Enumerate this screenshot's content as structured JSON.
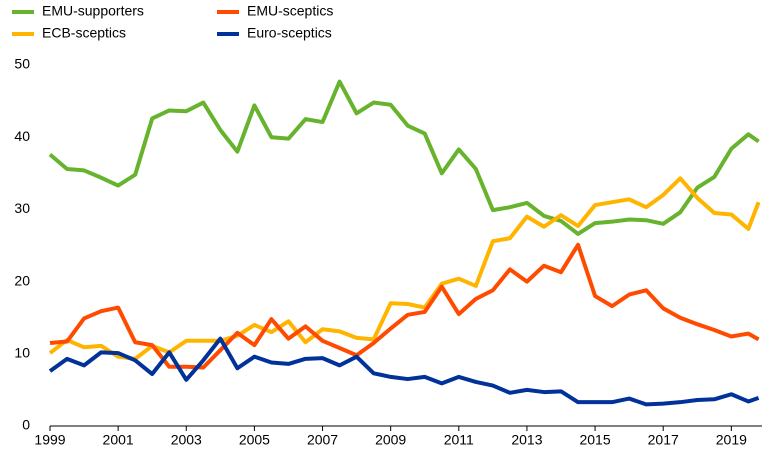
{
  "chart_data": {
    "type": "line",
    "x": [
      1999,
      1999.5,
      2000,
      2000.5,
      2001,
      2001.5,
      2002,
      2002.5,
      2003,
      2003.5,
      2004,
      2004.5,
      2005,
      2005.5,
      2006,
      2006.5,
      2007,
      2007.5,
      2008,
      2008.5,
      2009,
      2009.5,
      2010,
      2010.5,
      2011,
      2011.5,
      2012,
      2012.5,
      2013,
      2013.5,
      2014,
      2014.5,
      2015,
      2015.5,
      2016,
      2016.5,
      2017,
      2017.5,
      2018,
      2018.5,
      2019,
      2019.5,
      2019.8
    ],
    "series": [
      {
        "name": "EMU-supporters",
        "color": "#67b32e",
        "values": [
          37.6,
          35.6,
          35.4,
          34.4,
          33.3,
          34.8,
          42.6,
          43.7,
          43.6,
          44.8,
          41,
          38,
          44.4,
          40,
          39.8,
          42.5,
          42.1,
          47.7,
          43.3,
          44.8,
          44.5,
          41.6,
          40.5,
          35,
          38.3,
          35.6,
          29.9,
          30.3,
          30.9,
          29.1,
          28.4,
          26.6,
          28.1,
          28.3,
          28.6,
          28.5,
          28,
          29.6,
          33,
          34.5,
          38.4,
          40.4,
          39.4
        ]
      },
      {
        "name": "ECB-sceptics",
        "color": "#ffb400",
        "values": [
          10.1,
          11.9,
          10.9,
          11.1,
          9.6,
          9.3,
          11.1,
          10.2,
          11.8,
          11.8,
          11.8,
          12.5,
          14,
          13,
          14.5,
          11.6,
          13.4,
          13.1,
          12.2,
          12,
          17,
          16.9,
          16.4,
          19.7,
          20.4,
          19.4,
          25.6,
          26,
          29,
          27.6,
          29.2,
          27.7,
          30.6,
          31,
          31.4,
          30.3,
          32,
          34.3,
          31.6,
          29.5,
          29.3,
          27.3,
          31
        ]
      },
      {
        "name": "EMU-sceptics",
        "color": "#ff4b00",
        "values": [
          11.5,
          11.7,
          14.9,
          15.9,
          16.4,
          11.6,
          11.2,
          8.2,
          8.2,
          8.1,
          10.5,
          12.9,
          11.2,
          14.8,
          12.1,
          13.8,
          11.8,
          10.8,
          9.8,
          11.5,
          13.5,
          15.4,
          15.8,
          19.3,
          15.5,
          17.6,
          18.8,
          21.7,
          20,
          22.2,
          21.3,
          25.1,
          18,
          16.6,
          18.2,
          18.8,
          16.3,
          15,
          14.1,
          13.3,
          12.4,
          12.8,
          12
        ]
      },
      {
        "name": "Euro-sceptics",
        "color": "#003299",
        "values": [
          7.6,
          9.3,
          8.4,
          10.2,
          10.1,
          9.1,
          7.2,
          10.2,
          6.4,
          9.1,
          12.1,
          8,
          9.6,
          8.8,
          8.6,
          9.3,
          9.4,
          8.4,
          9.6,
          7.3,
          6.8,
          6.5,
          6.8,
          5.9,
          6.8,
          6.1,
          5.6,
          4.6,
          5,
          4.7,
          4.8,
          3.3,
          3.3,
          3.3,
          3.8,
          3,
          3.1,
          3.3,
          3.6,
          3.7,
          4.4,
          3.4,
          3.9
        ]
      }
    ],
    "xlim": [
      1999,
      2019.9
    ],
    "xticks": [
      1999,
      2001,
      2003,
      2005,
      2007,
      2009,
      2011,
      2013,
      2015,
      2017,
      2019
    ],
    "ylim": [
      0,
      50
    ],
    "yticks": [
      0,
      10,
      20,
      30,
      40,
      50
    ],
    "grid": false
  }
}
